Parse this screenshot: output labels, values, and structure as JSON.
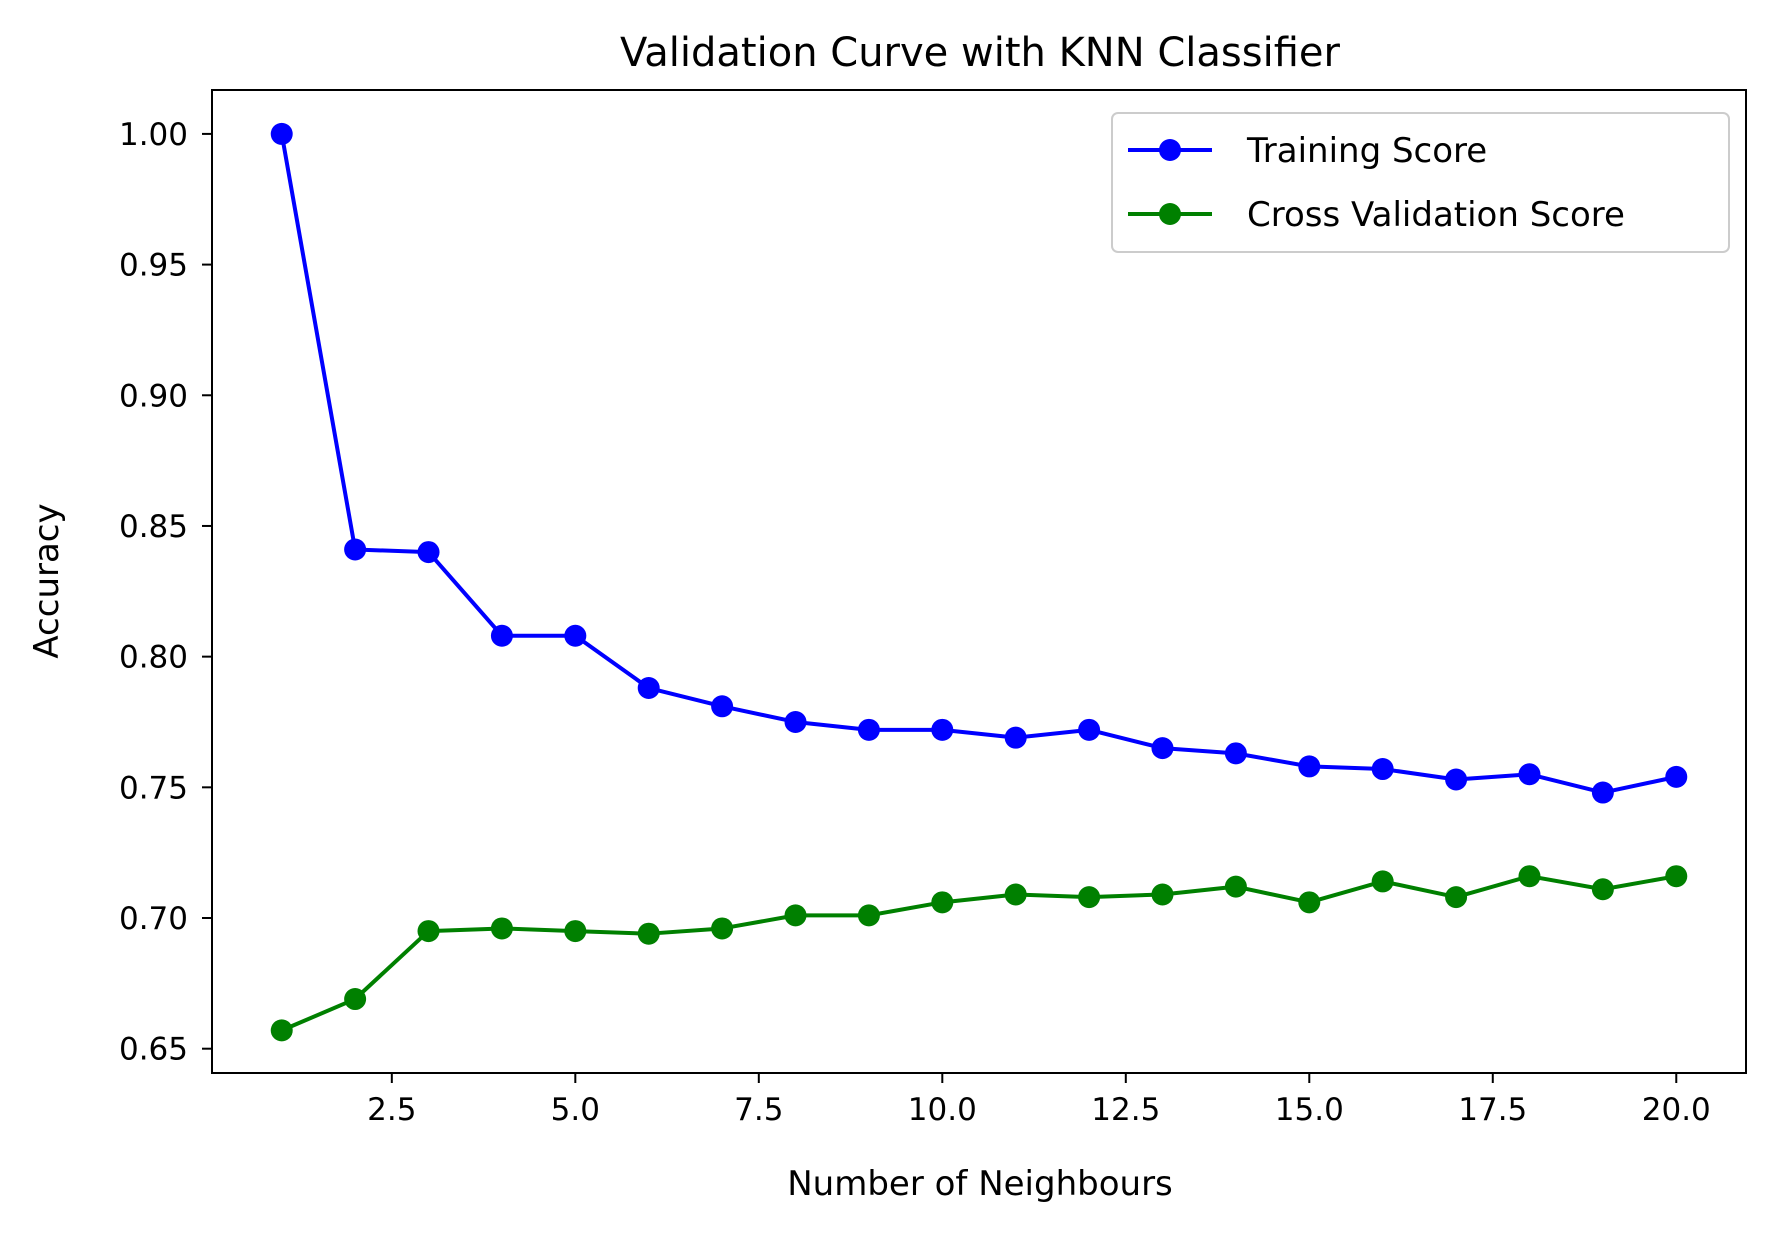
{
  "chart_data": {
    "type": "line",
    "title": "Validation Curve with KNN Classifier",
    "xlabel": "Number of Neighbours",
    "ylabel": "Accuracy",
    "xlim": [
      0.05,
      20.95
    ],
    "ylim": [
      0.6407,
      1.0168
    ],
    "xticks": [
      2.5,
      5.0,
      7.5,
      10.0,
      12.5,
      15.0,
      17.5,
      20.0
    ],
    "xtick_labels": [
      "2.5",
      "5.0",
      "7.5",
      "10.0",
      "12.5",
      "15.0",
      "17.5",
      "20.0"
    ],
    "yticks": [
      0.65,
      0.7,
      0.75,
      0.8,
      0.85,
      0.9,
      0.95,
      1.0
    ],
    "ytick_labels": [
      "0.65",
      "0.70",
      "0.75",
      "0.80",
      "0.85",
      "0.90",
      "0.95",
      "1.00"
    ],
    "grid": false,
    "legend_position": "top-right",
    "x": [
      1,
      2,
      3,
      4,
      5,
      6,
      7,
      8,
      9,
      10,
      11,
      12,
      13,
      14,
      15,
      16,
      17,
      18,
      19,
      20
    ],
    "series": [
      {
        "name": "Training Score",
        "color": "#0000ff",
        "marker": "circle",
        "values": [
          1.0,
          0.841,
          0.84,
          0.808,
          0.808,
          0.788,
          0.781,
          0.775,
          0.772,
          0.772,
          0.769,
          0.772,
          0.765,
          0.763,
          0.758,
          0.757,
          0.753,
          0.755,
          0.748,
          0.754
        ]
      },
      {
        "name": "Cross Validation Score",
        "color": "#008000",
        "marker": "circle",
        "values": [
          0.657,
          0.669,
          0.695,
          0.696,
          0.695,
          0.694,
          0.696,
          0.701,
          0.701,
          0.706,
          0.709,
          0.708,
          0.709,
          0.712,
          0.706,
          0.714,
          0.708,
          0.716,
          0.711,
          0.716
        ]
      }
    ]
  }
}
